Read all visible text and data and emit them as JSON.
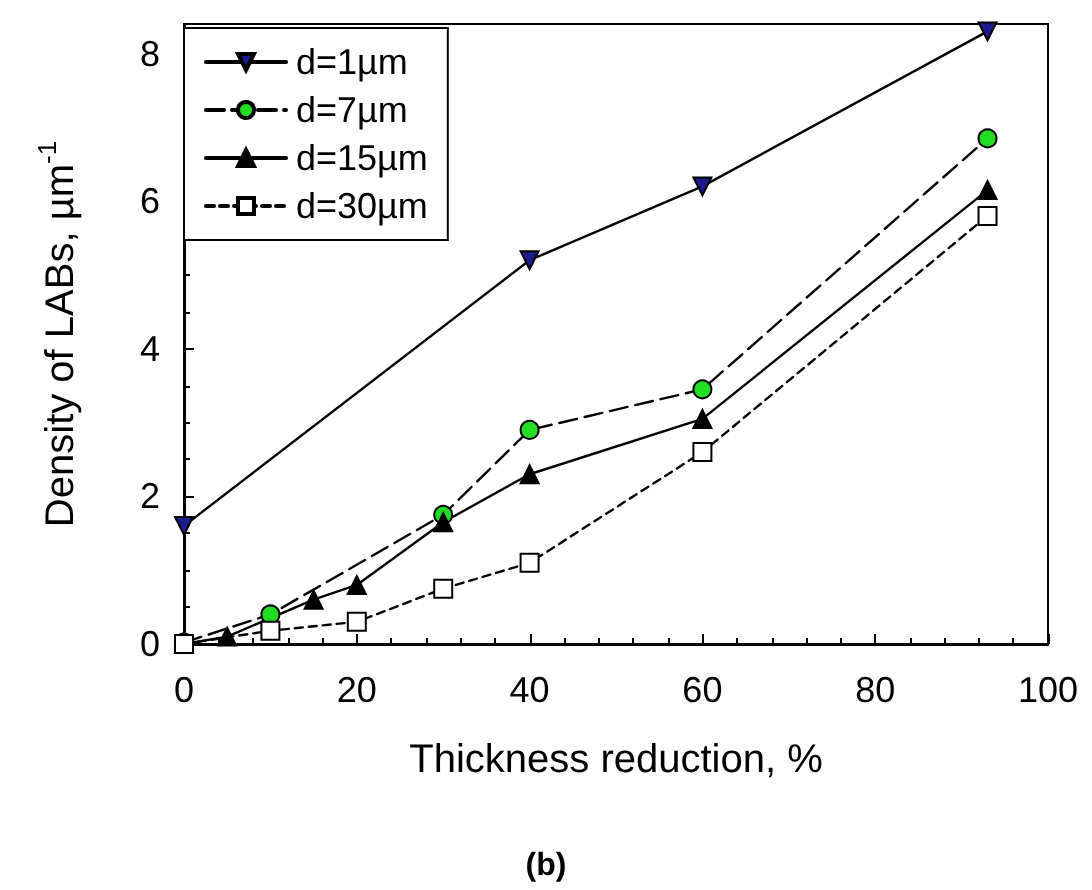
{
  "chart_data": {
    "type": "line",
    "xlabel": "Thickness reduction, %",
    "ylabel": "Density of LABs, µm$^{-1}$",
    "annotations": [
      "(b)"
    ],
    "xlim": [
      0,
      100
    ],
    "xticks": [
      0,
      20,
      40,
      60,
      80,
      100
    ],
    "ylim": [
      0,
      8.4
    ],
    "yticks": [
      0,
      2,
      4,
      6,
      8
    ],
    "grid": false,
    "legend": "top left",
    "series": [
      {
        "name": "d=1µm",
        "color": "#1c1c8c",
        "marker": "triangle-down",
        "line_style": "solid",
        "x": [
          0,
          40,
          60,
          93
        ],
        "values": [
          1.6,
          5.2,
          6.2,
          8.3
        ]
      },
      {
        "name": "d=7µm",
        "color": "#22dd22",
        "marker": "circle",
        "line_style": "dashed",
        "x": [
          0,
          10,
          30,
          40,
          60,
          93
        ],
        "values": [
          0.02,
          0.4,
          1.75,
          2.9,
          3.45,
          6.85
        ]
      },
      {
        "name": "d=15µm",
        "color": "#000000",
        "marker": "triangle",
        "line_style": "solid",
        "x": [
          0,
          5,
          15,
          20,
          30,
          40,
          60,
          93
        ],
        "values": [
          0,
          0.1,
          0.6,
          0.8,
          1.65,
          2.3,
          3.05,
          6.15
        ]
      },
      {
        "name": "d=30µm",
        "color": "#ffffff",
        "marker": "square",
        "line_style": "dotted",
        "x": [
          0,
          10,
          20,
          30,
          40,
          60,
          93
        ],
        "values": [
          0,
          0.18,
          0.3,
          0.75,
          1.1,
          2.6,
          5.8
        ]
      }
    ]
  }
}
